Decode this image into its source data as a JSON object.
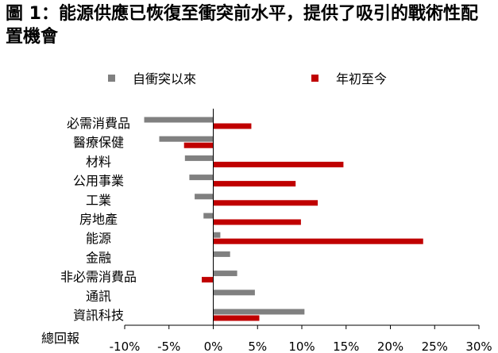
{
  "title": "圖 1：能源供應已恢復至衝突前水平，提供了吸引的戰術性配置機會",
  "colors": {
    "series_1": "#808080",
    "series_2": "#c00000"
  },
  "chart_data": {
    "type": "bar",
    "orientation": "horizontal",
    "categories": [
      "必需消費品",
      "醫療保健",
      "材料",
      "公用事業",
      "工業",
      "房地產",
      "能源",
      "金融",
      "非必需消費品",
      "通訊",
      "資訊科技"
    ],
    "series": [
      {
        "name": "自衝突以來",
        "values": [
          -7.8,
          -6.1,
          -3.2,
          -2.7,
          -2.1,
          -1.1,
          0.8,
          1.9,
          2.7,
          4.7,
          10.3
        ]
      },
      {
        "name": "年初至今",
        "values": [
          4.3,
          -3.3,
          14.7,
          9.3,
          11.8,
          9.9,
          23.7,
          0.0,
          -1.3,
          0.0,
          5.2
        ]
      }
    ],
    "xlabel": "總回報",
    "xlim": [
      -10,
      30
    ],
    "xticks": [
      "-10%",
      "-5%",
      "0%",
      "5%",
      "10%",
      "15%",
      "20%",
      "25%",
      "30%"
    ],
    "legend_position": "top",
    "grid": false
  }
}
